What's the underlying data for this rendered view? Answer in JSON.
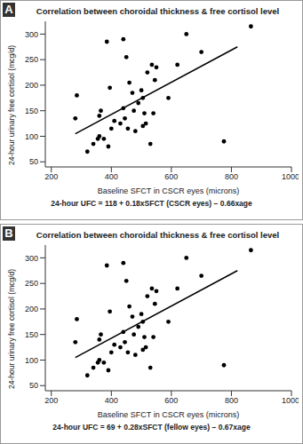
{
  "chart_data": [
    {
      "type": "scatter",
      "title": "Correlation between choroidal thickness & free cortisol level",
      "x_label": "Baseline SFCT in CSCR eyes (microns)",
      "y_label": "24-hour urinary free cortisol (mcg/d)",
      "annotations": [
        "A",
        "24-hour UFC = 118 + 0.18xSFCT (CSCR eyes) − 0.66xage"
      ],
      "xlim": [
        180,
        1000
      ],
      "xticks": [
        200,
        400,
        600,
        800,
        1000
      ],
      "ylim": [
        40,
        325
      ],
      "yticks": [
        50,
        100,
        150,
        200,
        250,
        300
      ],
      "grid": false,
      "series": [
        {
          "type": "scatter",
          "color": "#000000",
          "marker": "circle",
          "x": [
            285,
            280,
            320,
            340,
            355,
            360,
            360,
            365,
            375,
            385,
            390,
            395,
            400,
            410,
            430,
            440,
            440,
            445,
            450,
            455,
            460,
            470,
            475,
            480,
            490,
            500,
            505,
            505,
            510,
            515,
            520,
            530,
            535,
            540,
            545,
            550,
            590,
            620,
            650,
            700,
            775,
            865
          ],
          "values": [
            180,
            135,
            70,
            85,
            95,
            100,
            140,
            150,
            95,
            285,
            80,
            195,
            115,
            130,
            125,
            290,
            155,
            135,
            255,
            115,
            205,
            185,
            150,
            110,
            165,
            190,
            175,
            120,
            145,
            125,
            225,
            85,
            240,
            145,
            210,
            235,
            175,
            240,
            300,
            265,
            90,
            315
          ]
        },
        {
          "type": "line",
          "color": "#000000",
          "line_style": "solid",
          "x": [
            280,
            820
          ],
          "values": [
            105,
            275
          ]
        }
      ]
    },
    {
      "type": "scatter",
      "title": "Correlation between choroidal thickness & free cortisol level",
      "x_label": "Baseline SFCT in CSCR eyes (microns)",
      "y_label": "24-hour urinary free cortisol (mcg/d)",
      "annotations": [
        "B",
        "24-hour UFC = 69 + 0.28xSFCT (fellow eyes) − 0.67xage"
      ],
      "xlim": [
        180,
        1000
      ],
      "xticks": [
        200,
        400,
        600,
        800,
        1000
      ],
      "ylim": [
        40,
        325
      ],
      "yticks": [
        50,
        100,
        150,
        200,
        250,
        300
      ],
      "grid": false,
      "series": [
        {
          "type": "scatter",
          "color": "#000000",
          "marker": "circle",
          "x": [
            285,
            280,
            320,
            340,
            355,
            360,
            360,
            365,
            375,
            385,
            390,
            395,
            400,
            410,
            430,
            440,
            440,
            445,
            450,
            455,
            460,
            470,
            475,
            480,
            490,
            500,
            505,
            505,
            510,
            515,
            520,
            530,
            535,
            540,
            545,
            550,
            590,
            620,
            650,
            700,
            775,
            865
          ],
          "values": [
            180,
            135,
            70,
            85,
            95,
            100,
            140,
            150,
            95,
            285,
            80,
            195,
            115,
            130,
            125,
            290,
            155,
            135,
            255,
            115,
            205,
            185,
            150,
            110,
            165,
            190,
            175,
            120,
            145,
            125,
            225,
            85,
            240,
            145,
            210,
            235,
            175,
            240,
            300,
            265,
            90,
            315
          ]
        },
        {
          "type": "line",
          "color": "#000000",
          "line_style": "solid",
          "x": [
            280,
            820
          ],
          "values": [
            105,
            275
          ]
        }
      ]
    }
  ]
}
